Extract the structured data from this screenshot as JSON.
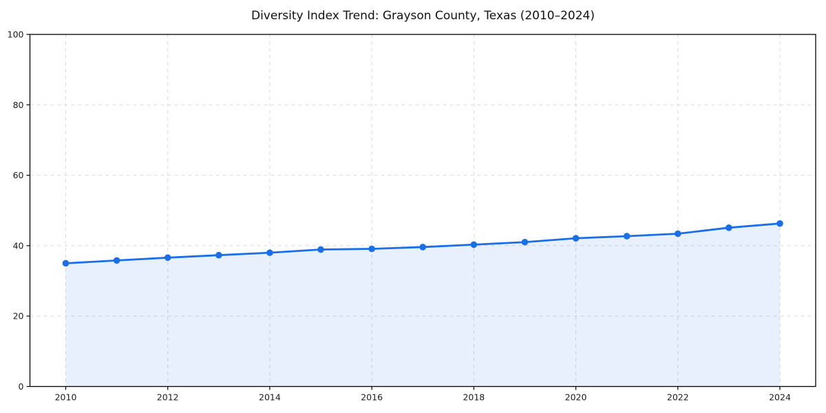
{
  "page": {
    "background": "#ffffff"
  },
  "chart_data": {
    "type": "line",
    "title": "Diversity Index Trend: Grayson County, Texas (2010–2024)",
    "xlabel": "",
    "ylabel": "",
    "x": [
      2010,
      2011,
      2012,
      2013,
      2014,
      2015,
      2016,
      2017,
      2018,
      2019,
      2020,
      2021,
      2022,
      2023,
      2024
    ],
    "series": [
      {
        "name": "Diversity Index",
        "values": [
          35.0,
          35.8,
          36.6,
          37.3,
          38.0,
          38.9,
          39.1,
          39.6,
          40.3,
          41.0,
          42.1,
          42.7,
          43.4,
          45.1,
          46.3
        ]
      }
    ],
    "xticks": [
      2010,
      2012,
      2014,
      2016,
      2018,
      2020,
      2022,
      2024
    ],
    "yticks": [
      0,
      20,
      40,
      60,
      80,
      100
    ],
    "ylim": [
      0,
      100
    ],
    "grid": true,
    "grid_style": "dashed",
    "legend_position": "none",
    "area_fill": true,
    "marker": "circle",
    "colors": {
      "line": "#1a6ee8",
      "area": "#1a6ee8",
      "area_opacity": 0.1,
      "grid": "#d9d9d9",
      "spine": "#000000",
      "tick_text": "#1a1a1a",
      "background": "#ffffff"
    }
  }
}
